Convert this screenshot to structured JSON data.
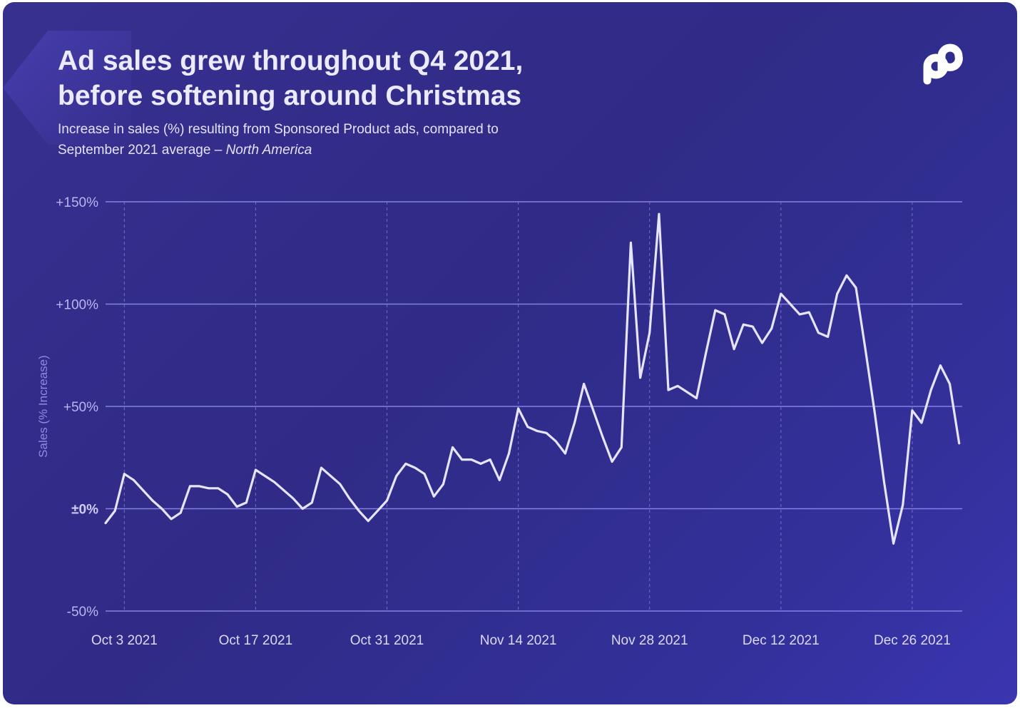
{
  "header": {
    "title_line1": "Ad sales grew throughout Q4 2021,",
    "title_line2": "before softening around Christmas",
    "subtitle_line1": "Increase in sales (%) resulting from Sponsored Product ads, compared to",
    "subtitle_line2_prefix": "September 2021 average – ",
    "subtitle_line2_region": "North America",
    "logo_icon": "brand-p-logo-icon"
  },
  "colors": {
    "background": "#2f2b86",
    "line": "#e6e4ff",
    "gridline": "#8a86e8",
    "text": "#eceaff"
  },
  "chart_data": {
    "type": "line",
    "ylabel": "Sales (% Increase)",
    "ylim": [
      -50,
      150
    ],
    "yticks": [
      {
        "value": 150,
        "label": "+150%"
      },
      {
        "value": 100,
        "label": "+100%"
      },
      {
        "value": 50,
        "label": "+50%"
      },
      {
        "value": 0,
        "label": "±0%"
      },
      {
        "value": -50,
        "label": "-50%"
      }
    ],
    "xrange": [
      "2021-10-01",
      "2021-12-31"
    ],
    "xticks": [
      {
        "date": "2021-10-03",
        "label": "Oct 3 2021"
      },
      {
        "date": "2021-10-17",
        "label": "Oct 17 2021"
      },
      {
        "date": "2021-10-31",
        "label": "Oct 31 2021"
      },
      {
        "date": "2021-11-14",
        "label": "Nov 14 2021"
      },
      {
        "date": "2021-11-28",
        "label": "Nov 28 2021"
      },
      {
        "date": "2021-12-12",
        "label": "Dec 12 2021"
      },
      {
        "date": "2021-12-26",
        "label": "Dec 26 2021"
      }
    ],
    "grid": true,
    "series": [
      {
        "points": [
          [
            "2021-10-01",
            -7
          ],
          [
            "2021-10-02",
            -1
          ],
          [
            "2021-10-03",
            17
          ],
          [
            "2021-10-04",
            14
          ],
          [
            "2021-10-05",
            9
          ],
          [
            "2021-10-06",
            4
          ],
          [
            "2021-10-07",
            0
          ],
          [
            "2021-10-08",
            -5
          ],
          [
            "2021-10-09",
            -2
          ],
          [
            "2021-10-10",
            11
          ],
          [
            "2021-10-11",
            11
          ],
          [
            "2021-10-12",
            10
          ],
          [
            "2021-10-13",
            10
          ],
          [
            "2021-10-14",
            7
          ],
          [
            "2021-10-15",
            1
          ],
          [
            "2021-10-16",
            3
          ],
          [
            "2021-10-17",
            19
          ],
          [
            "2021-10-18",
            16
          ],
          [
            "2021-10-19",
            13
          ],
          [
            "2021-10-20",
            9
          ],
          [
            "2021-10-21",
            5
          ],
          [
            "2021-10-22",
            0
          ],
          [
            "2021-10-23",
            3
          ],
          [
            "2021-10-24",
            20
          ],
          [
            "2021-10-25",
            16
          ],
          [
            "2021-10-26",
            12
          ],
          [
            "2021-10-27",
            5
          ],
          [
            "2021-10-28",
            -1
          ],
          [
            "2021-10-29",
            -6
          ],
          [
            "2021-10-30",
            -1
          ],
          [
            "2021-10-31",
            4
          ],
          [
            "2021-11-01",
            16
          ],
          [
            "2021-11-02",
            22
          ],
          [
            "2021-11-03",
            20
          ],
          [
            "2021-11-04",
            17
          ],
          [
            "2021-11-05",
            6
          ],
          [
            "2021-11-06",
            12
          ],
          [
            "2021-11-07",
            30
          ],
          [
            "2021-11-08",
            24
          ],
          [
            "2021-11-09",
            24
          ],
          [
            "2021-11-10",
            22
          ],
          [
            "2021-11-11",
            24
          ],
          [
            "2021-11-12",
            14
          ],
          [
            "2021-11-13",
            27
          ],
          [
            "2021-11-14",
            49
          ],
          [
            "2021-11-15",
            40
          ],
          [
            "2021-11-16",
            38
          ],
          [
            "2021-11-17",
            37
          ],
          [
            "2021-11-18",
            33
          ],
          [
            "2021-11-19",
            27
          ],
          [
            "2021-11-20",
            42
          ],
          [
            "2021-11-21",
            61
          ],
          [
            "2021-11-22",
            48
          ],
          [
            "2021-11-23",
            35
          ],
          [
            "2021-11-24",
            23
          ],
          [
            "2021-11-25",
            30
          ],
          [
            "2021-11-26",
            130
          ],
          [
            "2021-11-27",
            64
          ],
          [
            "2021-11-28",
            86
          ],
          [
            "2021-11-29",
            144
          ],
          [
            "2021-11-30",
            58
          ],
          [
            "2021-12-01",
            60
          ],
          [
            "2021-12-02",
            57
          ],
          [
            "2021-12-03",
            54
          ],
          [
            "2021-12-04",
            76
          ],
          [
            "2021-12-05",
            97
          ],
          [
            "2021-12-06",
            95
          ],
          [
            "2021-12-07",
            78
          ],
          [
            "2021-12-08",
            90
          ],
          [
            "2021-12-09",
            89
          ],
          [
            "2021-12-10",
            81
          ],
          [
            "2021-12-11",
            88
          ],
          [
            "2021-12-12",
            105
          ],
          [
            "2021-12-13",
            100
          ],
          [
            "2021-12-14",
            95
          ],
          [
            "2021-12-15",
            96
          ],
          [
            "2021-12-16",
            86
          ],
          [
            "2021-12-17",
            84
          ],
          [
            "2021-12-18",
            105
          ],
          [
            "2021-12-19",
            114
          ],
          [
            "2021-12-20",
            108
          ],
          [
            "2021-12-21",
            78
          ],
          [
            "2021-12-22",
            47
          ],
          [
            "2021-12-23",
            13
          ],
          [
            "2021-12-24",
            -17
          ],
          [
            "2021-12-25",
            2
          ],
          [
            "2021-12-26",
            48
          ],
          [
            "2021-12-27",
            42
          ],
          [
            "2021-12-28",
            58
          ],
          [
            "2021-12-29",
            70
          ],
          [
            "2021-12-30",
            61
          ],
          [
            "2021-12-31",
            32
          ]
        ]
      }
    ]
  }
}
